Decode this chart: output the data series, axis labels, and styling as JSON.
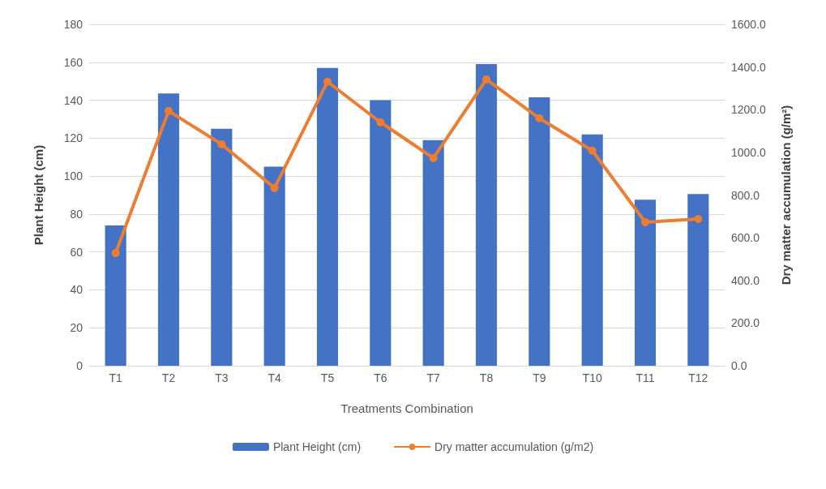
{
  "chart_data": {
    "type": "bar",
    "categories": [
      "T1",
      "T2",
      "T3",
      "T4",
      "T5",
      "T6",
      "T7",
      "T8",
      "T9",
      "T10",
      "T11",
      "T12"
    ],
    "xlabel": "Treatments Combination",
    "ylabel": "Plant Height (cm)",
    "y2label": "Dry matter accumulation (g/m²)",
    "series": [
      {
        "name": "Plant Height (cm)",
        "color": "#4472c4",
        "values": [
          74,
          143.5,
          125,
          105,
          157,
          140,
          119,
          159,
          141.5,
          122,
          87.5,
          90.5
        ]
      },
      {
        "name": "Dry matter accumulation (g/m2)",
        "type": "line",
        "axis": "y2",
        "color": "#ed7d31",
        "marker": "circle",
        "values": [
          528,
          1194,
          1038,
          833,
          1331,
          1141,
          973,
          1342,
          1160,
          1008,
          673,
          688
        ]
      }
    ],
    "ylim": [
      0,
      180
    ],
    "yticks": [
      0,
      20,
      40,
      60,
      80,
      100,
      120,
      140,
      160,
      180
    ],
    "y2lim": [
      0,
      1600
    ],
    "y2ticks": [
      {
        "value": 0,
        "label": "0.0"
      },
      {
        "value": 200,
        "label": "200.0"
      },
      {
        "value": 400,
        "label": "400.0"
      },
      {
        "value": 600,
        "label": "600.0"
      },
      {
        "value": 800,
        "label": "800.0"
      },
      {
        "value": 1000,
        "label": "1000.0"
      },
      {
        "value": 1200,
        "label": "1200.0"
      },
      {
        "value": 1400,
        "label": "1400.0"
      },
      {
        "value": 1600,
        "label": "1600.0"
      }
    ],
    "grid": "y",
    "legend": "bottom"
  }
}
